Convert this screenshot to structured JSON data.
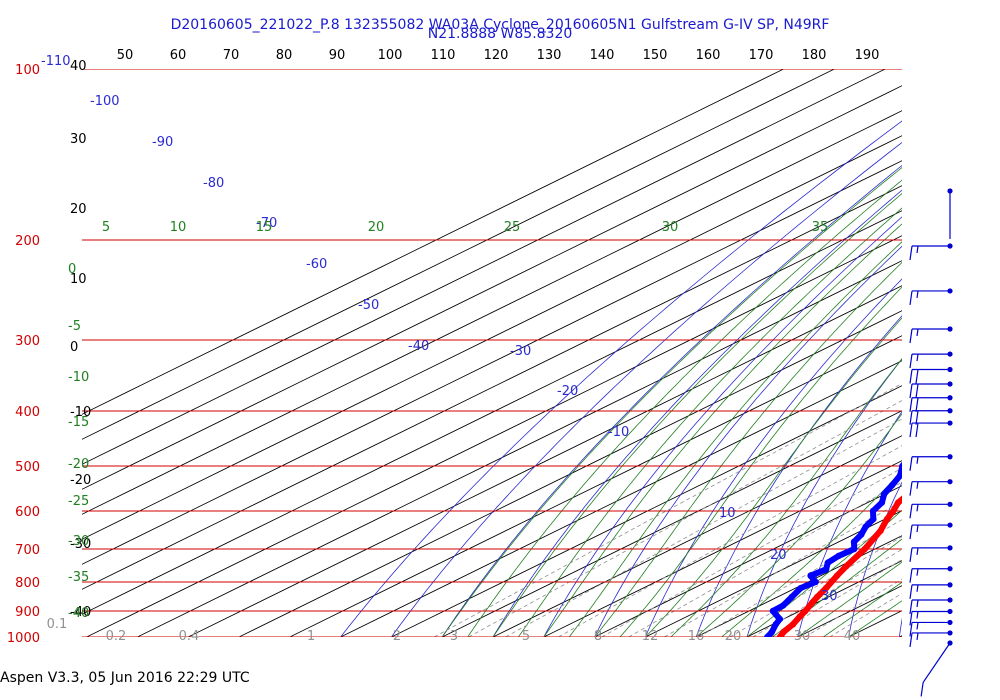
{
  "header": {
    "line1": "D20160605_221022_P.8 132355082 WA03A Cyclone_20160605N1 Gulfstream G-IV SP, N49RF",
    "line2": "N21.8888 W85.8320"
  },
  "footer": {
    "text": "Aspen V3.3, 05 Jun 2016  22:29 UTC"
  },
  "colors": {
    "isobar": "#d00000",
    "isotherm": "#000000",
    "dry_adiabat": "#2a2ad0",
    "moist_adiabat": "#208020",
    "mixing_ratio": "#909090",
    "temperature": "#ff0000",
    "dewpoint": "#0000ff",
    "wind": "#0000d0"
  },
  "chart_data": {
    "type": "skew-t",
    "pressure_levels": [
      "100",
      "200",
      "300",
      "400",
      "500",
      "600",
      "700",
      "800",
      "900",
      "1000"
    ],
    "pressure_range": [
      100,
      1000
    ],
    "temperature_range": [
      -110,
      40
    ],
    "top_axis_ticks": [
      "50",
      "60",
      "70",
      "80",
      "90",
      "100",
      "110",
      "120",
      "130",
      "140",
      "150",
      "160",
      "170",
      "180",
      "190"
    ],
    "left_temperature_labels": [
      "40",
      "30",
      "20",
      "10",
      "0",
      "-10",
      "-20",
      "-30",
      "-40"
    ],
    "isotherm_labels": [
      "-110",
      "-100",
      "-90",
      "-80",
      "-70",
      "-60",
      "-50",
      "-40",
      "-30",
      "-20",
      "-10",
      "10",
      "20",
      "30"
    ],
    "moist_adiabat_top_labels": [
      "5",
      "10",
      "15",
      "20",
      "25",
      "30",
      "35"
    ],
    "moist_adiabat_left_labels": [
      "0",
      "-5",
      "-10",
      "-15",
      "-20",
      "-25",
      "-30",
      "-35",
      "-40"
    ],
    "mixing_ratio_labels": [
      "0.1",
      "0.2",
      "0.4",
      "1",
      "2",
      "3",
      "5",
      "8",
      "12",
      "16",
      "20",
      "30",
      "40"
    ],
    "temperature": {
      "p": [
        1000,
        980,
        950,
        920,
        900,
        870,
        850,
        820,
        800,
        780,
        750,
        700,
        650,
        620,
        600,
        580,
        560,
        540,
        520,
        500,
        480,
        460,
        440,
        420,
        400,
        380,
        370,
        350,
        330,
        310,
        290,
        270,
        250,
        230,
        210,
        200,
        190
      ],
      "t": [
        26.5,
        25.2,
        24.0,
        22.2,
        21.1,
        19.1,
        17.8,
        16.0,
        14.6,
        13.2,
        11.2,
        8.0,
        3.8,
        0.4,
        -1.6,
        -4.0,
        -5.4,
        -7.0,
        -8.8,
        -10.0,
        -12.5,
        -14.9,
        -17.2,
        -19.9,
        -22.8,
        -25.6,
        -26.9,
        -28.9,
        -32.4,
        -35.6,
        -39.1,
        -43.1,
        -47.1,
        -50.7,
        -54.9,
        -57.0,
        -58.4
      ]
    },
    "dewpoint": {
      "p": [
        1000,
        980,
        950,
        930,
        900,
        880,
        850,
        820,
        800,
        780,
        760,
        740,
        720,
        700,
        680,
        660,
        640,
        620,
        600,
        580,
        560,
        540,
        520,
        500,
        490,
        470,
        450,
        430,
        410,
        400,
        390,
        385,
        380,
        370,
        360,
        350,
        340,
        330,
        310,
        290,
        270,
        250,
        240,
        230,
        220,
        210,
        200
      ],
      "td": [
        24.0,
        22.9,
        20.6,
        19.3,
        14.7,
        14.5,
        12.8,
        11.0,
        11.5,
        8.0,
        8.5,
        6.2,
        5.6,
        5.9,
        3.0,
        1.5,
        -0.7,
        -2.3,
        -5.6,
        -7.2,
        -10.2,
        -12.2,
        -14.4,
        -17.8,
        -19.0,
        -22.4,
        -23.7,
        -27.6,
        -33.3,
        -35.1,
        -39.5,
        -40.7,
        -39.5,
        -36.8,
        -36.0,
        -39.4,
        -42.2,
        -46.8,
        -51.6,
        -54.5,
        -58.1,
        -63.2,
        -64.4,
        -67.9,
        -69.9,
        -73.2,
        -76.8
      ]
    },
    "wind_barbs": [
      {
        "p": 160,
        "dir": "S",
        "speed_kt": 0
      },
      {
        "p": 200,
        "dir": "E",
        "speed_kt": 15
      },
      {
        "p": 240,
        "dir": "E",
        "speed_kt": 15
      },
      {
        "p": 280,
        "dir": "E",
        "speed_kt": 15
      },
      {
        "p": 310,
        "dir": "E",
        "speed_kt": 15
      },
      {
        "p": 330,
        "dir": "E",
        "speed_kt": 20
      },
      {
        "p": 350,
        "dir": "E",
        "speed_kt": 20
      },
      {
        "p": 370,
        "dir": "E",
        "speed_kt": 20
      },
      {
        "p": 390,
        "dir": "E",
        "speed_kt": 20
      },
      {
        "p": 410,
        "dir": "E",
        "speed_kt": 20
      },
      {
        "p": 470,
        "dir": "E",
        "speed_kt": 15
      },
      {
        "p": 520,
        "dir": "E",
        "speed_kt": 15
      },
      {
        "p": 570,
        "dir": "E",
        "speed_kt": 15
      },
      {
        "p": 620,
        "dir": "E",
        "speed_kt": 15
      },
      {
        "p": 680,
        "dir": "E",
        "speed_kt": 15
      },
      {
        "p": 740,
        "dir": "E",
        "speed_kt": 15
      },
      {
        "p": 790,
        "dir": "E",
        "speed_kt": 15
      },
      {
        "p": 840,
        "dir": "E",
        "speed_kt": 15
      },
      {
        "p": 880,
        "dir": "E",
        "speed_kt": 15
      },
      {
        "p": 920,
        "dir": "E",
        "speed_kt": 15
      },
      {
        "p": 960,
        "dir": "E",
        "speed_kt": 15
      },
      {
        "p": 1000,
        "dir": "SE",
        "speed_kt": 10
      }
    ]
  }
}
